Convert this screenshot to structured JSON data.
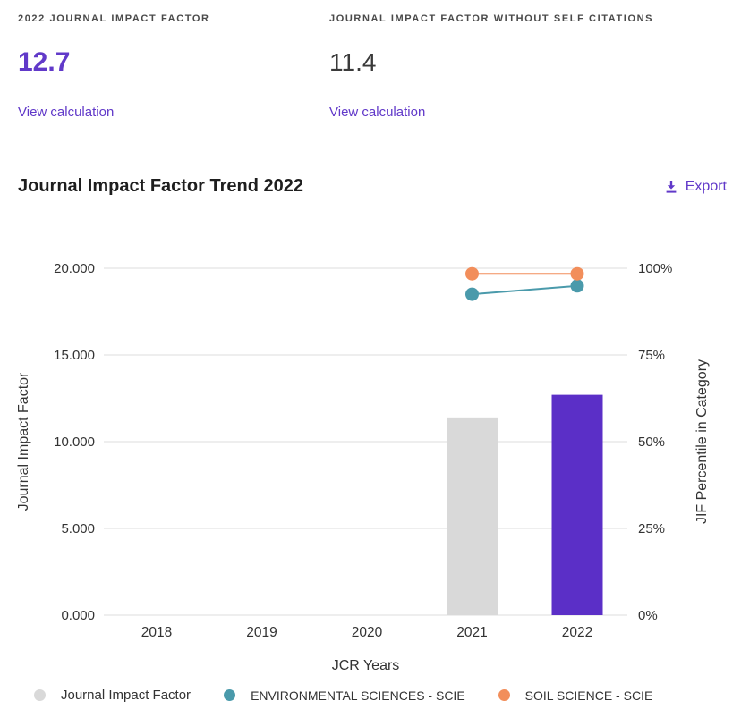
{
  "metrics": {
    "jif": {
      "label": "2022 JOURNAL IMPACT FACTOR",
      "value": "12.7",
      "link_label": "View calculation"
    },
    "jif_without_self": {
      "label": "JOURNAL IMPACT FACTOR WITHOUT SELF CITATIONS",
      "value": "11.4",
      "link_label": "View calculation"
    }
  },
  "trend": {
    "title": "Journal Impact Factor Trend 2022",
    "export_label": "Export",
    "export_icon": "download-icon"
  },
  "colors": {
    "accent_purple": "#6139c9",
    "bar_purple": "#5b2fc7",
    "bar_gray": "#d9d9d9",
    "teal": "#4a9aab",
    "orange": "#f28e5b",
    "gridline": "#e4e4e4",
    "text_dark": "#333333"
  },
  "chart_data": {
    "type": "bar",
    "title": "Journal Impact Factor Trend 2022",
    "categories": [
      "2018",
      "2019",
      "2020",
      "2021",
      "2022"
    ],
    "xlabel": "JCR Years",
    "grid": true,
    "legend_position": "bottom",
    "left_axis": {
      "label": "Journal Impact Factor",
      "min": 0,
      "max": 20,
      "ticks": [
        "0.000",
        "5.000",
        "10.000",
        "15.000",
        "20.000"
      ]
    },
    "right_axis": {
      "label": "JIF Percentile in Category",
      "min": 0,
      "max": 100,
      "ticks": [
        "0%",
        "25%",
        "50%",
        "75%",
        "100%"
      ]
    },
    "series": [
      {
        "name": "Journal Impact Factor",
        "type": "bar",
        "axis": "left",
        "values": [
          null,
          null,
          null,
          11.4,
          12.7
        ],
        "bar_colors": [
          null,
          null,
          null,
          "#d9d9d9",
          "#5b2fc7"
        ]
      },
      {
        "name": "ENVIRONMENTAL SCIENCES - SCIE",
        "type": "line",
        "axis": "right",
        "color": "#4a9aab",
        "values": [
          null,
          null,
          null,
          92.5,
          94.9
        ]
      },
      {
        "name": "SOIL SCIENCE - SCIE",
        "type": "line",
        "axis": "right",
        "color": "#f28e5b",
        "values": [
          null,
          null,
          null,
          98.4,
          98.4
        ]
      }
    ]
  },
  "legend": {
    "items": [
      {
        "label": "Journal Impact Factor",
        "color": "#d9d9d9",
        "caps": false
      },
      {
        "label": "ENVIRONMENTAL SCIENCES - SCIE",
        "color": "#4a9aab",
        "caps": true
      },
      {
        "label": "SOIL SCIENCE - SCIE",
        "color": "#f28e5b",
        "caps": true
      }
    ]
  }
}
